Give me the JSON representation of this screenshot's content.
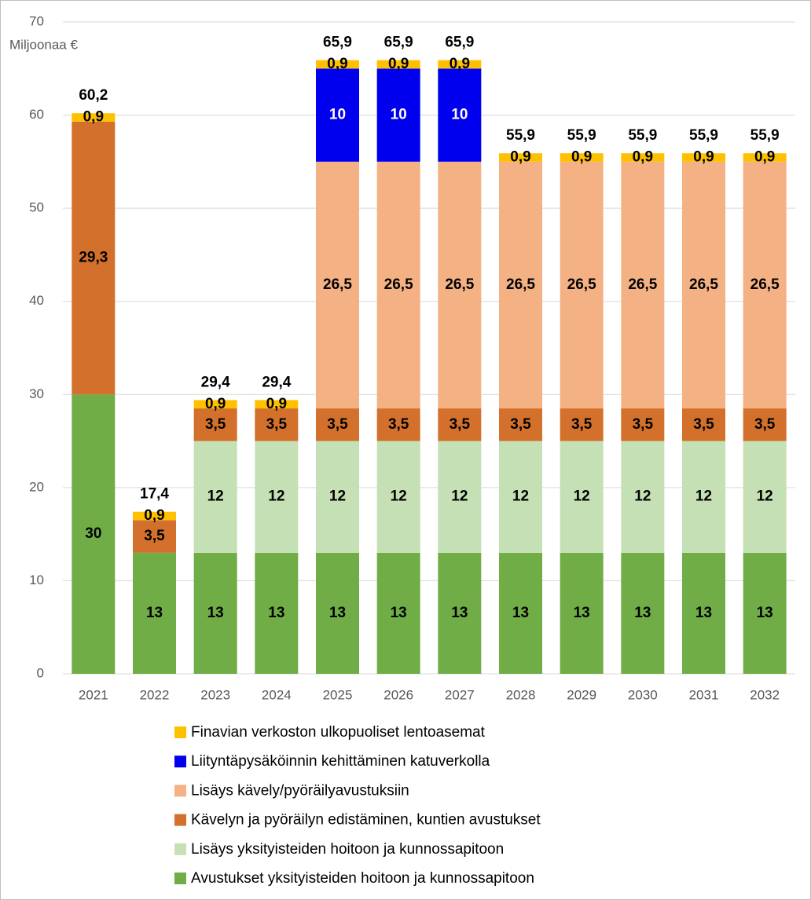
{
  "chart_data": {
    "type": "stacked_bar",
    "y_label": "Miljoonaa €",
    "categories": [
      "2021",
      "2022",
      "2023",
      "2024",
      "2025",
      "2026",
      "2027",
      "2028",
      "2029",
      "2030",
      "2031",
      "2032"
    ],
    "series": [
      {
        "name": "Avustukset yksityisteiden hoitoon ja kunnossapitoon",
        "color": "#70ad47",
        "label_color": "#000000",
        "values": [
          30,
          13,
          13,
          13,
          13,
          13,
          13,
          13,
          13,
          13,
          13,
          13
        ],
        "value_labels": [
          "30",
          "13",
          "13",
          "13",
          "13",
          "13",
          "13",
          "13",
          "13",
          "13",
          "13",
          "13"
        ]
      },
      {
        "name": "Lisäys yksityisteiden hoitoon ja kunnossapitoon",
        "color": "#c5e0b4",
        "label_color": "#000000",
        "values": [
          null,
          null,
          12,
          12,
          12,
          12,
          12,
          12,
          12,
          12,
          12,
          12
        ],
        "value_labels": [
          null,
          null,
          "12",
          "12",
          "12",
          "12",
          "12",
          "12",
          "12",
          "12",
          "12",
          "12"
        ]
      },
      {
        "name": "Kävelyn ja pyöräilyn edistäminen, kuntien avustukset",
        "color": "#d2702c",
        "label_color": "#000000",
        "values": [
          29.3,
          3.5,
          3.5,
          3.5,
          3.5,
          3.5,
          3.5,
          3.5,
          3.5,
          3.5,
          3.5,
          3.5
        ],
        "value_labels": [
          "29,3",
          "3,5",
          "3,5",
          "3,5",
          "3,5",
          "3,5",
          "3,5",
          "3,5",
          "3,5",
          "3,5",
          "3,5",
          "3,5"
        ]
      },
      {
        "name": "Lisäys kävely/pyöräilyavustuksiin",
        "color": "#f4b183",
        "label_color": "#000000",
        "values": [
          null,
          null,
          null,
          null,
          26.5,
          26.5,
          26.5,
          26.5,
          26.5,
          26.5,
          26.5,
          26.5
        ],
        "value_labels": [
          null,
          null,
          null,
          null,
          "26,5",
          "26,5",
          "26,5",
          "26,5",
          "26,5",
          "26,5",
          "26,5",
          "26,5"
        ]
      },
      {
        "name": "Liityntäpysäköinnin kehittäminen katuverkolla",
        "color": "#0000ee",
        "label_color": "#ffffff",
        "values": [
          null,
          null,
          null,
          null,
          10,
          10,
          10,
          null,
          null,
          null,
          null,
          null
        ],
        "value_labels": [
          null,
          null,
          null,
          null,
          "10",
          "10",
          "10",
          null,
          null,
          null,
          null,
          null
        ]
      },
      {
        "name": "Finavian verkoston ulkopuoliset lentoasemat",
        "color": "#ffc000",
        "label_color": "#000000",
        "values": [
          0.9,
          0.9,
          0.9,
          0.9,
          0.9,
          0.9,
          0.9,
          0.9,
          0.9,
          0.9,
          0.9,
          0.9
        ],
        "value_labels": [
          "0,9",
          "0,9",
          "0,9",
          "0,9",
          "0,9",
          "0,9",
          "0,9",
          "0,9",
          "0,9",
          "0,9",
          "0,9",
          "0,9"
        ]
      }
    ],
    "totals": [
      60.2,
      17.4,
      29.4,
      29.4,
      65.9,
      65.9,
      65.9,
      55.9,
      55.9,
      55.9,
      55.9,
      55.9
    ],
    "total_labels": [
      "60,2",
      "17,4",
      "29,4",
      "29,4",
      "65,9",
      "65,9",
      "65,9",
      "55,9",
      "55,9",
      "55,9",
      "55,9",
      "55,9"
    ],
    "ylim": [
      0,
      70
    ],
    "yticks": [
      0,
      10,
      20,
      30,
      40,
      50,
      60,
      70
    ],
    "grid": true
  }
}
